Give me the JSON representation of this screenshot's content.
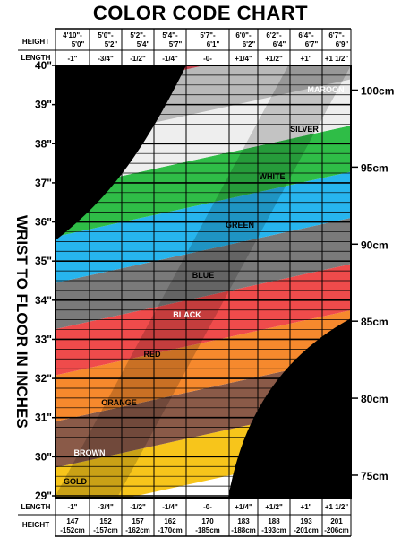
{
  "chart_data": {
    "type": "table",
    "title": "COLOR CODE CHART",
    "ylabel": "WRIST TO FLOOR IN INCHES",
    "row_labels": {
      "height_top": "HEIGHT",
      "length_top": "LENGTH",
      "length_bottom": "LENGTH",
      "height_bottom": "HEIGHT"
    },
    "columns": [
      {
        "height_ft": [
          "4'10\"-",
          "5'0\""
        ],
        "length": "-1\"",
        "height_cm": [
          "147",
          "-152cm"
        ]
      },
      {
        "height_ft": [
          "5'0\"-",
          "5'2\""
        ],
        "length": "-3/4\"",
        "height_cm": [
          "152",
          "-157cm"
        ]
      },
      {
        "height_ft": [
          "5'2\"-",
          "5'4\""
        ],
        "length": "-1/2\"",
        "height_cm": [
          "157",
          "-162cm"
        ]
      },
      {
        "height_ft": [
          "5'4\"-",
          "5'7\""
        ],
        "length": "-1/4\"",
        "height_cm": [
          "162",
          "-170cm"
        ]
      },
      {
        "height_ft": [
          "5'7\"-",
          "6'1\""
        ],
        "length": "-0-",
        "height_cm": [
          "170",
          "-185cm"
        ]
      },
      {
        "height_ft": [
          "6'0\"-",
          "6'2\""
        ],
        "length": "+1/4\"",
        "height_cm": [
          "183",
          "-188cm"
        ]
      },
      {
        "height_ft": [
          "6'2\"-",
          "6'4\""
        ],
        "length": "+1/2\"",
        "height_cm": [
          "188",
          "-193cm"
        ]
      },
      {
        "height_ft": [
          "6'4\"-",
          "6'7\""
        ],
        "length": "+1\"",
        "height_cm": [
          "193",
          "-201cm"
        ]
      },
      {
        "height_ft": [
          "6'7\"-",
          "6'9\""
        ],
        "length": "+1 1/2\"",
        "height_cm": [
          "201",
          "-206cm"
        ]
      }
    ],
    "y_inches": {
      "ticks": [
        "29\"",
        "30\"",
        "31\"",
        "32\"",
        "33\"",
        "34\"",
        "35\"",
        "36\"",
        "37\"",
        "38\"",
        "39\"",
        "40\""
      ],
      "range": [
        29,
        40
      ]
    },
    "y_cm": {
      "ticks": [
        "75cm",
        "80cm",
        "85cm",
        "90cm",
        "95cm",
        "100cm"
      ],
      "values": [
        75,
        80,
        85,
        90,
        95,
        100
      ]
    },
    "bands": [
      {
        "name": "GOLD",
        "color": "#f7c51b"
      },
      {
        "name": "BROWN",
        "color": "#8a5a48"
      },
      {
        "name": "ORANGE",
        "color": "#f6892d"
      },
      {
        "name": "RED",
        "color": "#ef4b4b"
      },
      {
        "name": "BLACK",
        "color": "#7a7a7a"
      },
      {
        "name": "BLUE",
        "color": "#27b5ee"
      },
      {
        "name": "GREEN",
        "color": "#2fbd47"
      },
      {
        "name": "WHITE",
        "color": "#eeeeee"
      },
      {
        "name": "SILVER",
        "color": "#b9b9b9"
      },
      {
        "name": "MAROON",
        "color": "#c34550"
      }
    ]
  }
}
